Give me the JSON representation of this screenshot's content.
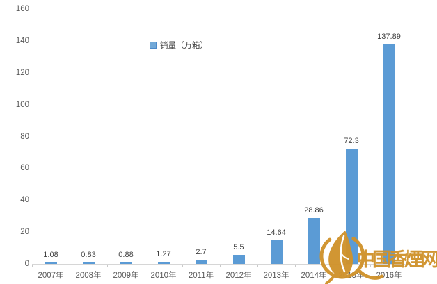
{
  "chart_data": {
    "type": "bar",
    "title": "",
    "legend": "销量（万箱）",
    "categories": [
      "2007年",
      "2008年",
      "2009年",
      "2010年",
      "2011年",
      "2012年",
      "2013年",
      "2014年",
      "2015年",
      "2016年"
    ],
    "values": [
      1.08,
      0.83,
      0.88,
      1.27,
      2.7,
      5.5,
      14.64,
      28.86,
      72.3,
      137.89
    ],
    "value_labels": [
      "1.08",
      "0.83",
      "0.88",
      "1.27",
      "2.7",
      "5.5",
      "14.64",
      "28.86",
      "72.3",
      "137.89"
    ],
    "xlabel": "",
    "ylabel": "",
    "ylim": [
      0,
      160
    ],
    "ytick_step": 20,
    "yticks": [
      0,
      20,
      40,
      60,
      80,
      100,
      120,
      140,
      160
    ],
    "grid": false,
    "legend_position": "top-center-left",
    "bar_color": "#5b9bd5"
  },
  "watermark": {
    "text": "中国香煙网",
    "logo": "leaf-in-circle",
    "color": "#d0922b"
  },
  "colors": {
    "bar": "#5b9bd5",
    "gold": "#d0922b",
    "value_label": "#404040",
    "axis_tick_label": "#595959",
    "axis_line": "#d6d6d6"
  }
}
